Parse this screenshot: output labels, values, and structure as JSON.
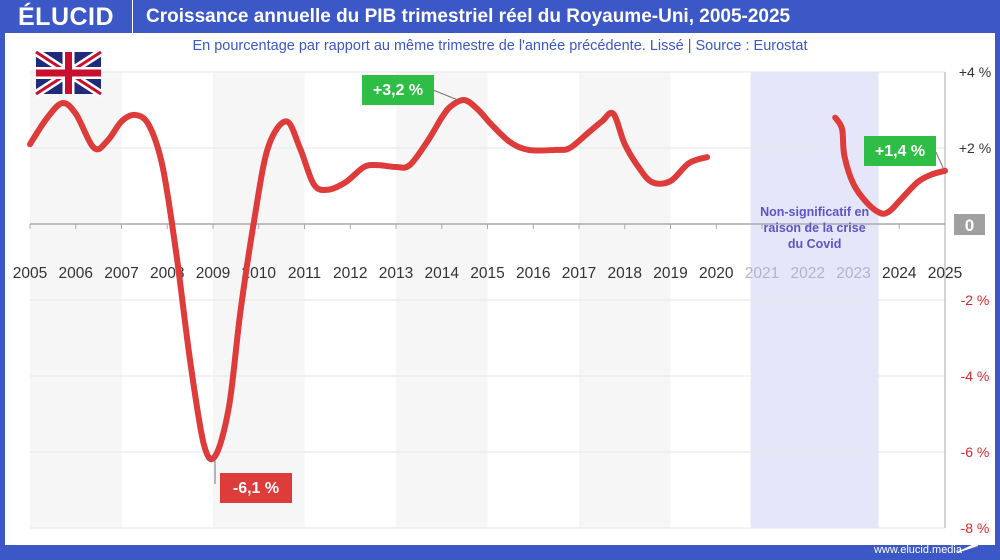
{
  "header": {
    "logo": "ÉLUCID",
    "title": "Croissance annuelle du PIB trimestriel réel du Royaume-Uni, 2005-2025"
  },
  "subtitle": "En pourcentage par rapport au même trimestre de l'année précédente. Lissé  |  Source : Eurostat",
  "footer": "www.elucid.media",
  "colors": {
    "brand": "#3c57c6",
    "line": "#de3b3b",
    "positive_label": "#2ebd45",
    "negative_label": "#de3b3b",
    "covid_band": "#e6e6fa",
    "negative_tick": "#d9262c"
  },
  "flag_icon": "united-kingdom-flag",
  "chart_data": {
    "type": "line",
    "title": "Croissance annuelle du PIB trimestriel réel du Royaume-Uni, 2005-2025",
    "xlim": [
      2005,
      2025
    ],
    "ylim": [
      -8,
      4
    ],
    "x_ticks": [
      "2005",
      "2006",
      "2007",
      "2008",
      "2009",
      "2010",
      "2011",
      "2012",
      "2013",
      "2014",
      "2015",
      "2016",
      "2017",
      "2018",
      "2019",
      "2020",
      "2021",
      "2022",
      "2023",
      "2024",
      "2025"
    ],
    "y_ticks": [
      {
        "v": 4,
        "label": "+4 %"
      },
      {
        "v": 2,
        "label": "+2 %"
      },
      {
        "v": 0,
        "label": "0"
      },
      {
        "v": -2,
        "label": "-2 %"
      },
      {
        "v": -4,
        "label": "-4 %"
      },
      {
        "v": -6,
        "label": "-6 %"
      },
      {
        "v": -8,
        "label": "-8 %"
      }
    ],
    "grid": true,
    "series": [
      {
        "segment": "2005-2019",
        "points": [
          [
            2005.0,
            2.1
          ],
          [
            2005.35,
            2.75
          ],
          [
            2005.7,
            3.18
          ],
          [
            2006.0,
            2.9
          ],
          [
            2006.4,
            2.0
          ],
          [
            2006.7,
            2.2
          ],
          [
            2007.0,
            2.7
          ],
          [
            2007.3,
            2.87
          ],
          [
            2007.6,
            2.6
          ],
          [
            2007.9,
            1.5
          ],
          [
            2008.2,
            -0.8
          ],
          [
            2008.5,
            -3.6
          ],
          [
            2008.8,
            -5.8
          ],
          [
            2009.05,
            -6.1
          ],
          [
            2009.35,
            -4.8
          ],
          [
            2009.6,
            -2.3
          ],
          [
            2009.9,
            0.1
          ],
          [
            2010.2,
            2.0
          ],
          [
            2010.6,
            2.7
          ],
          [
            2010.9,
            2.0
          ],
          [
            2011.2,
            1.05
          ],
          [
            2011.5,
            0.9
          ],
          [
            2011.9,
            1.1
          ],
          [
            2012.3,
            1.5
          ],
          [
            2012.6,
            1.55
          ],
          [
            2013.0,
            1.5
          ],
          [
            2013.3,
            1.55
          ],
          [
            2013.7,
            2.2
          ],
          [
            2014.0,
            2.8
          ],
          [
            2014.2,
            3.1
          ],
          [
            2014.5,
            3.26
          ],
          [
            2014.8,
            3.0
          ],
          [
            2015.1,
            2.6
          ],
          [
            2015.5,
            2.15
          ],
          [
            2015.9,
            1.95
          ],
          [
            2016.5,
            1.95
          ],
          [
            2016.8,
            2.0
          ],
          [
            2017.2,
            2.4
          ],
          [
            2017.5,
            2.7
          ],
          [
            2017.75,
            2.9
          ],
          [
            2018.0,
            2.1
          ],
          [
            2018.3,
            1.5
          ],
          [
            2018.6,
            1.1
          ],
          [
            2019.0,
            1.13
          ],
          [
            2019.4,
            1.6
          ],
          [
            2019.8,
            1.76
          ]
        ]
      },
      {
        "segment": "2022-2025",
        "points": [
          [
            2022.6,
            2.8
          ],
          [
            2022.75,
            2.5
          ],
          [
            2022.8,
            1.8
          ],
          [
            2023.0,
            1.05
          ],
          [
            2023.3,
            0.55
          ],
          [
            2023.6,
            0.28
          ],
          [
            2023.8,
            0.35
          ],
          [
            2024.0,
            0.6
          ],
          [
            2024.4,
            1.1
          ],
          [
            2024.7,
            1.3
          ],
          [
            2025.0,
            1.4
          ]
        ]
      }
    ],
    "annotations": [
      {
        "label": "+3,2 %",
        "x": 2014.4,
        "y": 3.2,
        "type": "positive"
      },
      {
        "label": "-6,1 %",
        "x": 2009.05,
        "y": -6.1,
        "type": "negative"
      },
      {
        "label": "+1,4 %",
        "x": 2025.0,
        "y": 1.4,
        "type": "positive"
      }
    ],
    "shaded_region": {
      "from": 2020.75,
      "to": 2023.55,
      "text": [
        "Non-significatif en",
        "raison de la crise",
        "du Covid"
      ]
    }
  }
}
